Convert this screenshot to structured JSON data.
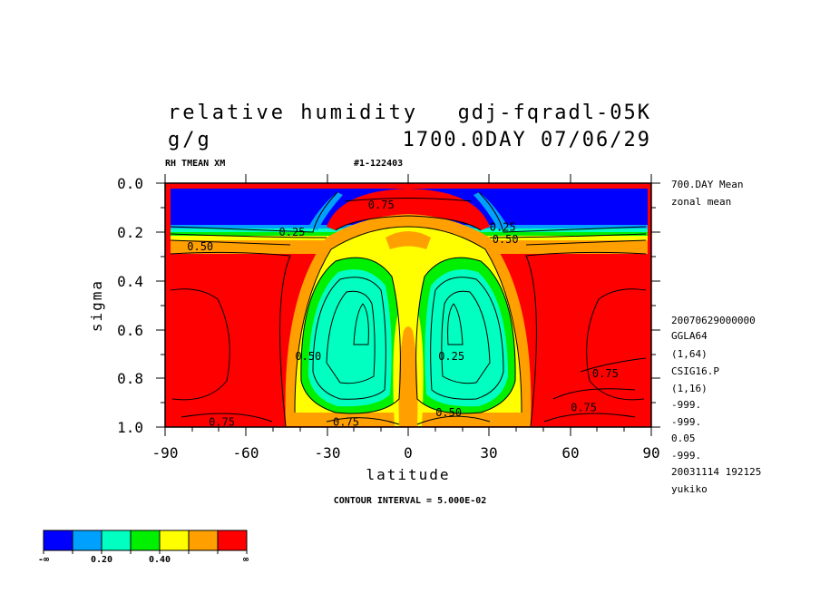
{
  "title": {
    "line1_left": "relative humidity",
    "line1_right": "gdj-fqradl-05K",
    "line2_left": "g/g",
    "line2_right": "1700.0DAY 07/06/29",
    "sub_left": "RH TMEAN XM",
    "sub_right": "#1-122403"
  },
  "side_info": {
    "top": [
      "700.DAY Mean",
      "zonal mean"
    ],
    "bottom": [
      "20070629000000",
      "GGLA64",
      "(1,64)",
      "CSIG16.P",
      "(1,16)",
      "-999.",
      "-999.",
      "0.05",
      "-999.",
      "20031114 192125",
      "yukiko"
    ]
  },
  "footer": "CONTOUR INTERVAL = 5.000E-02",
  "chart_data": {
    "type": "heatmap",
    "xlabel": "latitude",
    "ylabel": "sigma",
    "xlim": [
      -90,
      90
    ],
    "ylim": [
      0.0,
      1.0
    ],
    "y_inverted": true,
    "x_ticks": [
      "-90",
      "-60",
      "-30",
      "0",
      "30",
      "60",
      "90"
    ],
    "y_ticks": [
      "0.0",
      "0.2",
      "0.4",
      "0.6",
      "0.8",
      "1.0"
    ],
    "contour_interval": 0.05,
    "contour_labels": [
      {
        "text": "0.75",
        "x": -10,
        "y": 0.09
      },
      {
        "text": "0.25",
        "x": -43,
        "y": 0.2
      },
      {
        "text": "0.50",
        "x": -77,
        "y": 0.26
      },
      {
        "text": "0.25",
        "x": 35,
        "y": 0.18
      },
      {
        "text": "0.50",
        "x": 36,
        "y": 0.23
      },
      {
        "text": "0.50",
        "x": -37,
        "y": 0.71
      },
      {
        "text": "0.25",
        "x": 16,
        "y": 0.71
      },
      {
        "text": "0.75",
        "x": 73,
        "y": 0.78
      },
      {
        "text": "0.75",
        "x": 65,
        "y": 0.92
      },
      {
        "text": "0.50",
        "x": 15,
        "y": 0.94
      },
      {
        "text": "0.75",
        "x": -69,
        "y": 0.98
      },
      {
        "text": "0.75",
        "x": -23,
        "y": 0.98
      }
    ],
    "colorbar": {
      "colors": [
        "#0000ff",
        "#00a0ff",
        "#00ffc0",
        "#00f000",
        "#ffff00",
        "#ffa000",
        "#ff0000"
      ],
      "labels": [
        "-∞",
        "0.20",
        "0.40",
        "∞"
      ]
    }
  }
}
